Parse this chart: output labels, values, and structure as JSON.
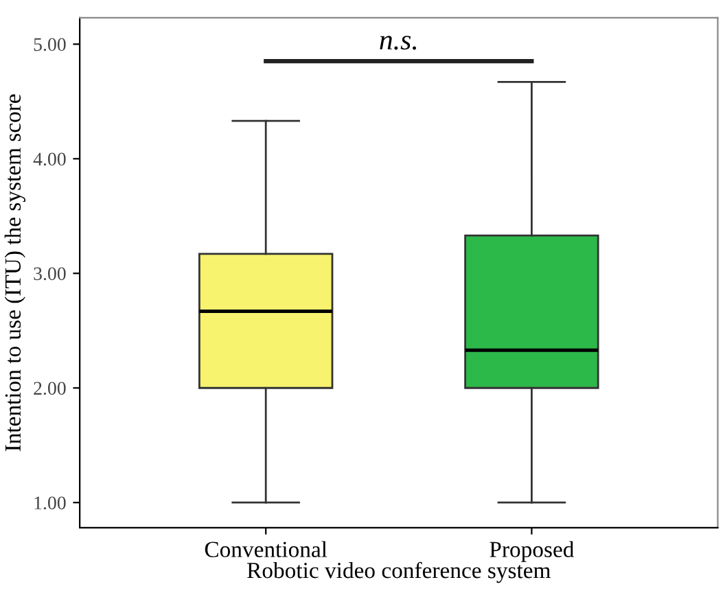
{
  "chart_data": {
    "type": "box",
    "xlabel": "Robotic video conference system",
    "ylabel": "Intention to use (ITU) the system score",
    "categories": [
      "Conventional",
      "Proposed"
    ],
    "colors": [
      "#f7f36e",
      "#2db84a"
    ],
    "boxes": [
      {
        "low": 1.0,
        "q1": 2.0,
        "median": 2.67,
        "q3": 3.17,
        "high": 4.33
      },
      {
        "low": 1.0,
        "q1": 2.0,
        "median": 2.33,
        "q3": 3.33,
        "high": 4.67
      }
    ],
    "ylim": [
      0.78,
      5.23
    ],
    "yticks": [
      {
        "value": 1,
        "label": "1.00"
      },
      {
        "value": 2,
        "label": "2.00"
      },
      {
        "value": 3,
        "label": "3.00"
      },
      {
        "value": 4,
        "label": "4.00"
      },
      {
        "value": 5,
        "label": "5.00"
      }
    ],
    "annotations": [
      "n.s."
    ]
  }
}
